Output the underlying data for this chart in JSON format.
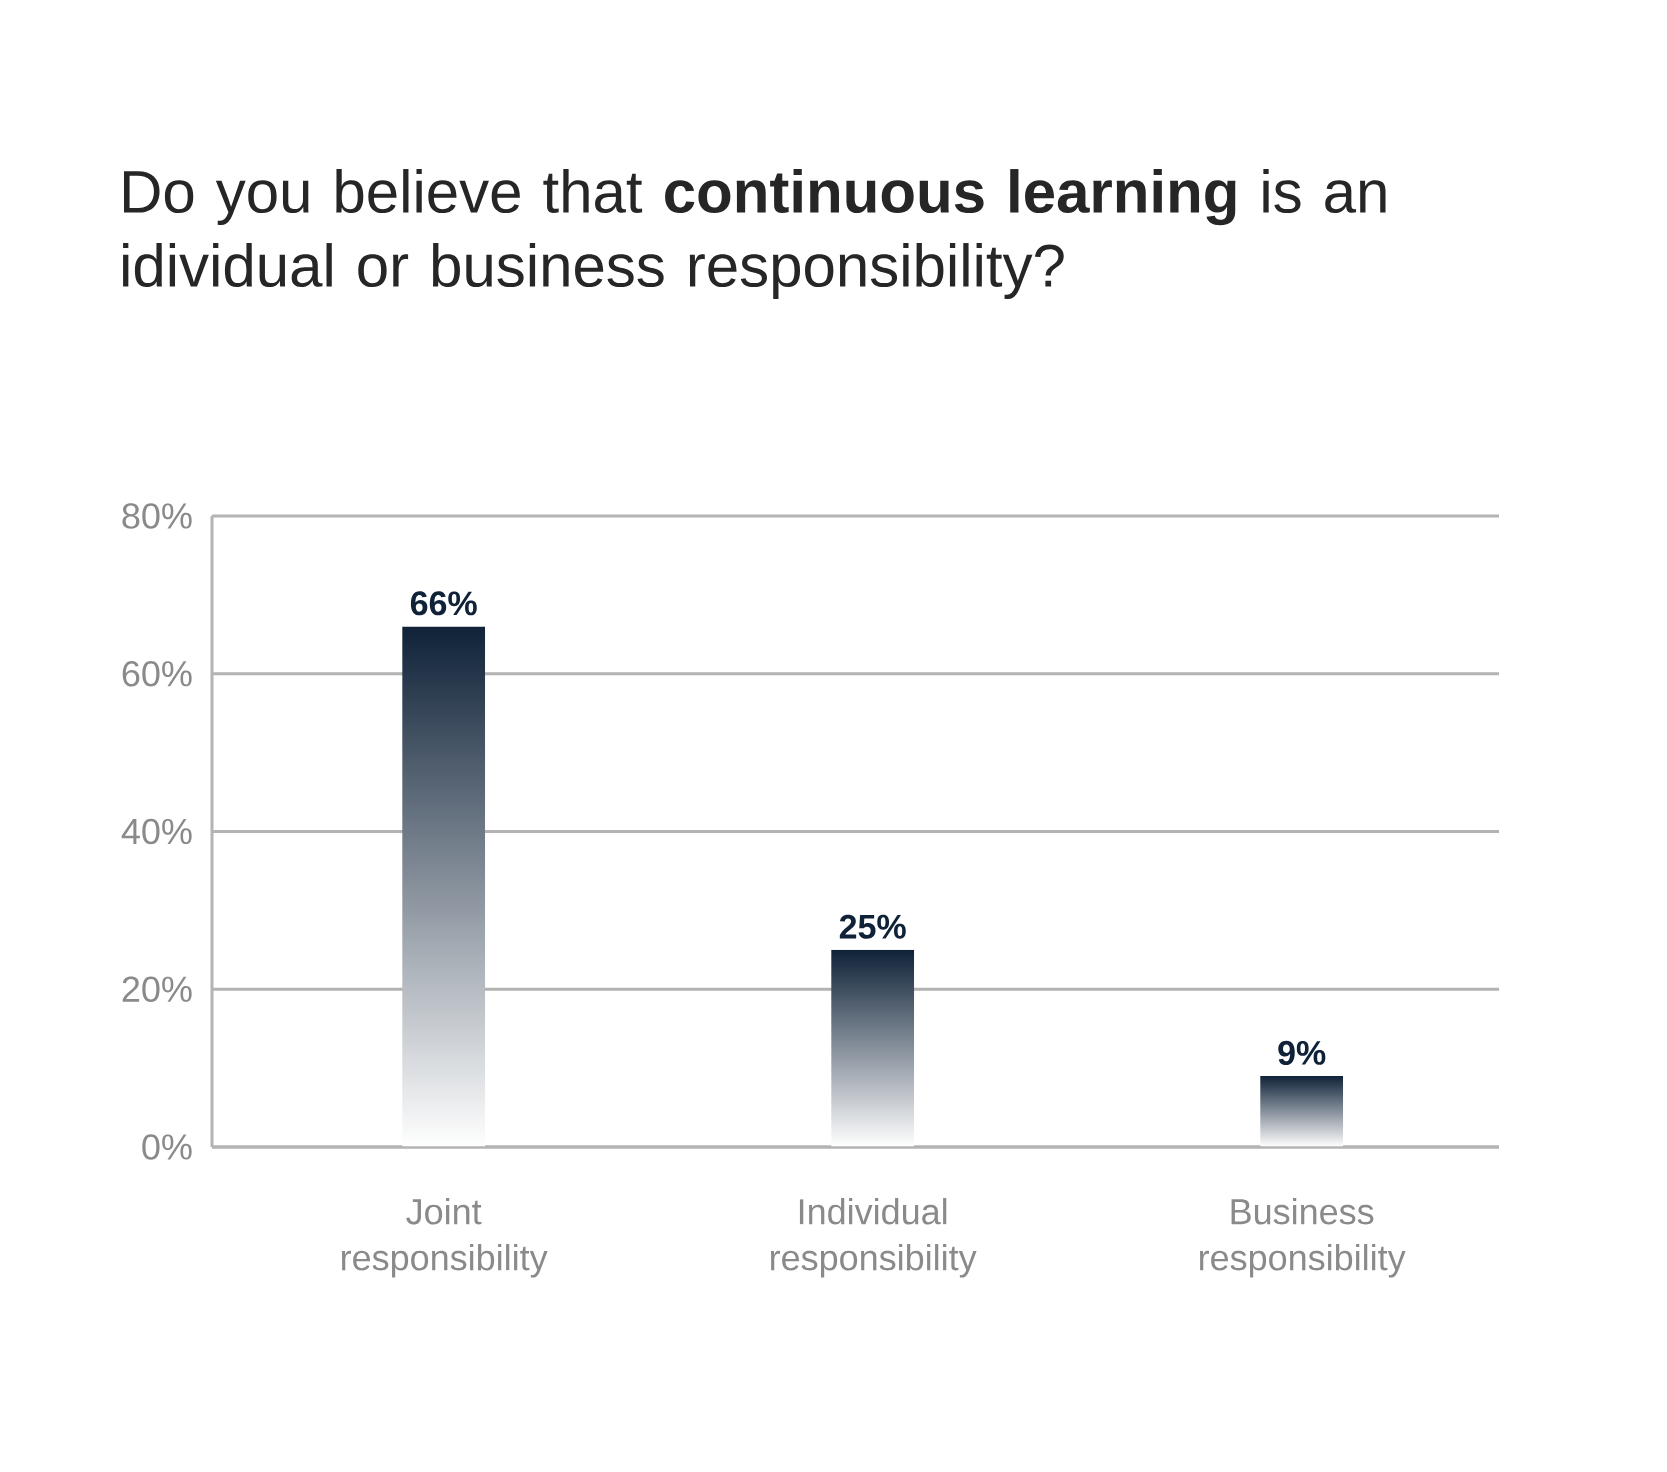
{
  "chart_data": {
    "type": "bar",
    "title": "Do you believe that **continuous learning** is an idividual or business responsibility?",
    "categories": [
      "Joint responsibility",
      "Individual responsibility",
      "Business responsibility"
    ],
    "values": [
      66,
      25,
      9
    ],
    "value_labels": [
      "66%",
      "25%",
      "9%"
    ],
    "color": "#0f2238",
    "ylim": [
      0,
      80
    ],
    "yticks": [
      {
        "value": 0,
        "label": "0%"
      },
      {
        "value": 20,
        "label": "20%"
      },
      {
        "value": 40,
        "label": "40%"
      },
      {
        "value": 60,
        "label": "60%"
      },
      {
        "value": 80,
        "label": "80%"
      }
    ],
    "grid": "y"
  }
}
